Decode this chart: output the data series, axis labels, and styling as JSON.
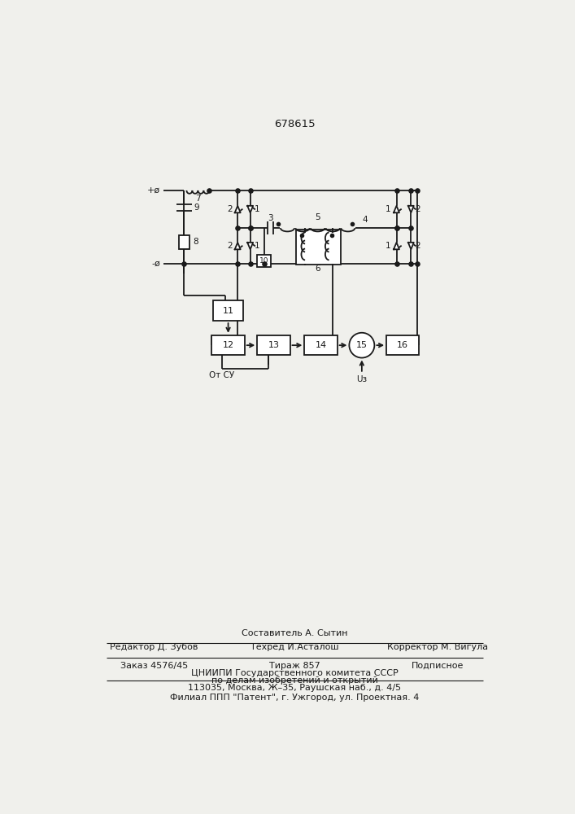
{
  "title": "678615",
  "bg_color": "#f0f0ec",
  "line_color": "#1a1a1a",
  "lw": 1.3,
  "footer": {
    "line1_left": "Редактор Д. Зубов",
    "line1_center_top": "Составитель А. Сытин",
    "line1_center_bot": "Техред И.Асталош",
    "line1_right": "Корректор М. Вигула",
    "line2_left": "Заказ 4576/45",
    "line2_center": "Тираж 857",
    "line2_right": "Подписное",
    "line3": "ЦНИИПИ Государственного комитета СССР",
    "line4": "по делам изобретений и открытий",
    "line5": "113035, Москва, Ж–35, Раушская наб., д. 4/5",
    "line6": "Филиал ППП \"Патент\", г. Ужгород, ул. Проектная. 4"
  }
}
